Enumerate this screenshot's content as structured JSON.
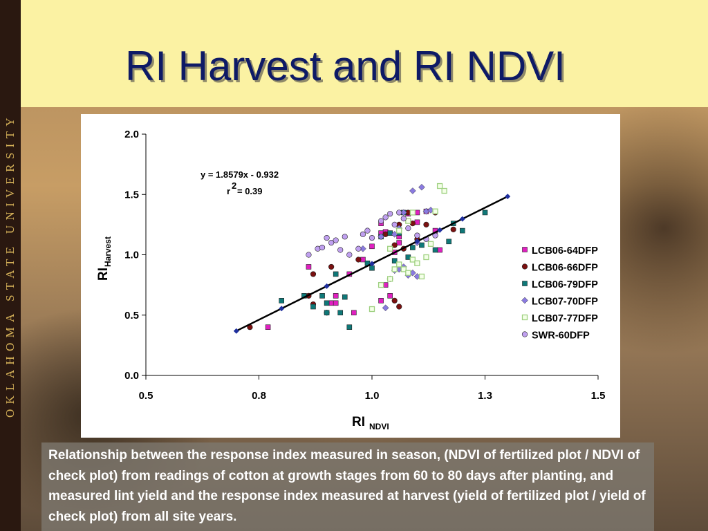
{
  "slide": {
    "title": "RI Harvest and RI NDVI",
    "sidebar_text": "OKLAHOMA STATE UNIVERSITY",
    "caption": "Relationship between the response index measured in season, (NDVI of fertilized plot / NDVI of check plot) from readings of cotton at growth stages from 60 to 80 days after planting, and measured lint yield and the response index measured at harvest (yield of fertilized plot / yield of check plot) from all site years."
  },
  "colors": {
    "title": "#0e1a66",
    "title_bar": "#fbf2a3",
    "sidebar": "#2a1810",
    "sidebar_text": "#d8b45a",
    "regression_line": "#000000"
  },
  "chart_data": {
    "type": "scatter",
    "title": "",
    "xlabel": "RI",
    "xlabel_sub": "NDVI",
    "ylabel": "RI",
    "ylabel_sub": "Harvest",
    "xlim": [
      0.5,
      1.5
    ],
    "ylim": [
      0.0,
      2.0
    ],
    "xticks": [
      "0.5",
      "0.8",
      "1.0",
      "1.3",
      "1.5"
    ],
    "xtick_values": [
      0.5,
      0.75,
      1.0,
      1.25,
      1.5
    ],
    "yticks": [
      "0.0",
      "0.5",
      "1.0",
      "1.5",
      "2.0"
    ],
    "ytick_values": [
      0.0,
      0.5,
      1.0,
      1.5,
      2.0
    ],
    "grid": false,
    "legend_position": "right",
    "equation": "y = 1.8579x - 0.932",
    "r2_label": "r",
    "r2_sup": "2",
    "r2_value": "= 0.39",
    "regression": {
      "slope": 1.8579,
      "intercept": -0.932,
      "x_start": 0.7,
      "x_end": 1.3,
      "line_points_x": [
        0.7,
        0.8,
        0.9,
        1.0,
        1.1,
        1.15,
        1.2,
        1.3
      ],
      "line_color": "#000000",
      "marker_color": "#1f2f9e"
    },
    "series": [
      {
        "name": "LCB06-64DFP",
        "marker": "square",
        "color": "#e020c0",
        "points": [
          [
            0.77,
            0.4
          ],
          [
            0.91,
            0.6
          ],
          [
            0.92,
            0.6
          ],
          [
            0.92,
            0.66
          ],
          [
            0.95,
            0.84
          ],
          [
            0.96,
            0.52
          ],
          [
            0.98,
            0.96
          ],
          [
            1.0,
            1.07
          ],
          [
            1.02,
            1.18
          ],
          [
            1.02,
            1.26
          ],
          [
            1.03,
            1.19
          ],
          [
            1.03,
            0.75
          ],
          [
            1.05,
            1.02
          ],
          [
            1.06,
            1.1
          ],
          [
            1.06,
            1.15
          ],
          [
            1.08,
            1.34
          ],
          [
            1.1,
            1.35
          ],
          [
            1.12,
            1.36
          ],
          [
            1.14,
            1.2
          ],
          [
            1.15,
            1.04
          ],
          [
            1.04,
            0.66
          ],
          [
            0.86,
            0.9
          ],
          [
            1.1,
            1.27
          ],
          [
            1.02,
            0.62
          ]
        ]
      },
      {
        "name": "LCB06-66DFP",
        "marker": "circle",
        "color": "#7a1010",
        "points": [
          [
            0.73,
            0.4
          ],
          [
            0.86,
            0.66
          ],
          [
            0.87,
            0.59
          ],
          [
            0.87,
            0.84
          ],
          [
            0.9,
            0.52
          ],
          [
            0.91,
            0.9
          ],
          [
            0.97,
            0.96
          ],
          [
            1.03,
            1.17
          ],
          [
            1.05,
            0.62
          ],
          [
            1.06,
            0.57
          ],
          [
            1.07,
            1.05
          ],
          [
            1.08,
            1.35
          ],
          [
            1.09,
            1.26
          ],
          [
            1.1,
            1.13
          ],
          [
            1.12,
            1.25
          ],
          [
            1.14,
            1.35
          ],
          [
            1.18,
            1.21
          ],
          [
            1.05,
            1.08
          ],
          [
            1.06,
            1.25
          ]
        ]
      },
      {
        "name": "LCB06-79DFP",
        "marker": "square",
        "color": "#0f7878",
        "points": [
          [
            0.8,
            0.62
          ],
          [
            0.85,
            0.66
          ],
          [
            0.87,
            0.57
          ],
          [
            0.89,
            0.66
          ],
          [
            0.9,
            0.6
          ],
          [
            0.9,
            0.52
          ],
          [
            0.92,
            0.84
          ],
          [
            0.93,
            0.52
          ],
          [
            0.94,
            0.65
          ],
          [
            0.95,
            0.4
          ],
          [
            0.99,
            0.93
          ],
          [
            1.0,
            0.89
          ],
          [
            1.02,
            1.15
          ],
          [
            1.04,
            1.18
          ],
          [
            1.05,
            0.95
          ],
          [
            1.06,
            1.18
          ],
          [
            1.07,
            1.35
          ],
          [
            1.08,
            0.98
          ],
          [
            1.09,
            1.06
          ],
          [
            1.11,
            1.08
          ],
          [
            1.14,
            1.04
          ],
          [
            1.17,
            1.11
          ],
          [
            1.18,
            1.26
          ],
          [
            1.2,
            1.2
          ],
          [
            1.25,
            1.35
          ]
        ]
      },
      {
        "name": "LCB07-70DFP",
        "marker": "diamond",
        "color": "#8a7ae0",
        "points": [
          [
            1.04,
            0.8
          ],
          [
            1.05,
            0.87
          ],
          [
            1.06,
            0.88
          ],
          [
            1.07,
            0.9
          ],
          [
            1.08,
            0.83
          ],
          [
            1.09,
            0.85
          ],
          [
            1.1,
            0.82
          ],
          [
            1.05,
            1.17
          ],
          [
            1.06,
            1.22
          ],
          [
            1.07,
            1.35
          ],
          [
            1.09,
            1.53
          ],
          [
            1.11,
            1.56
          ],
          [
            1.12,
            1.36
          ],
          [
            1.13,
            1.37
          ],
          [
            1.1,
            1.1
          ],
          [
            1.03,
            0.56
          ],
          [
            1.02,
            1.15
          ],
          [
            0.98,
            1.05
          ]
        ]
      },
      {
        "name": "LCB07-77DFP",
        "marker": "square-open",
        "color": "#9ed080",
        "points": [
          [
            1.0,
            0.55
          ],
          [
            1.02,
            0.75
          ],
          [
            1.04,
            0.8
          ],
          [
            1.05,
            0.88
          ],
          [
            1.06,
            0.92
          ],
          [
            1.07,
            0.88
          ],
          [
            1.08,
            0.85
          ],
          [
            1.09,
            0.96
          ],
          [
            1.1,
            0.93
          ],
          [
            1.11,
            0.82
          ],
          [
            1.12,
            0.98
          ],
          [
            1.13,
            1.09
          ],
          [
            1.14,
            1.36
          ],
          [
            1.15,
            1.57
          ],
          [
            1.16,
            1.53
          ],
          [
            1.08,
            1.28
          ],
          [
            1.09,
            1.35
          ],
          [
            1.06,
            1.2
          ],
          [
            1.04,
            1.05
          ]
        ]
      },
      {
        "name": "SWR-60DFP",
        "marker": "circle",
        "color": "#c0a0f0",
        "points": [
          [
            0.86,
            1.0
          ],
          [
            0.88,
            1.05
          ],
          [
            0.89,
            1.06
          ],
          [
            0.9,
            1.14
          ],
          [
            0.91,
            1.1
          ],
          [
            0.92,
            1.12
          ],
          [
            0.93,
            1.04
          ],
          [
            0.95,
            1.0
          ],
          [
            0.97,
            1.05
          ],
          [
            0.99,
            1.2
          ],
          [
            1.0,
            1.14
          ],
          [
            1.02,
            1.28
          ],
          [
            1.03,
            1.31
          ],
          [
            1.04,
            1.34
          ],
          [
            1.05,
            1.25
          ],
          [
            1.06,
            1.35
          ],
          [
            1.07,
            1.3
          ],
          [
            1.08,
            1.22
          ],
          [
            1.1,
            1.16
          ],
          [
            1.12,
            1.13
          ],
          [
            1.14,
            1.16
          ],
          [
            0.94,
            1.15
          ],
          [
            0.98,
            1.17
          ]
        ]
      }
    ]
  }
}
